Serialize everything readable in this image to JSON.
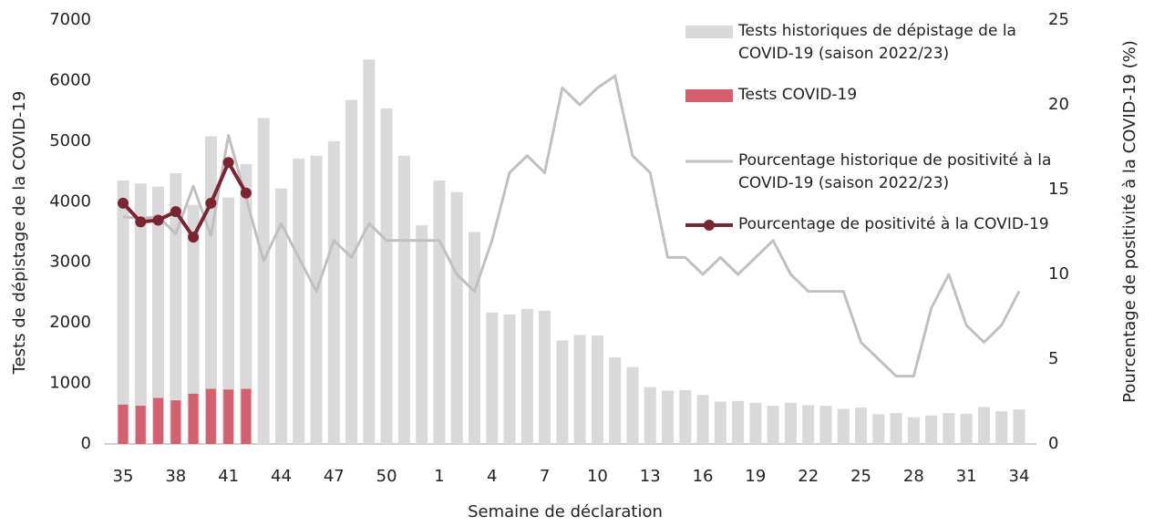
{
  "chart_data": {
    "type": "bar",
    "x_label": "Semaine de déclaration",
    "y_label": "Tests de dépistage de la COVID-19",
    "y2_label": "Pourcentage de positivité à la COVID-19 (%)",
    "categories": [
      "35",
      null,
      null,
      "38",
      null,
      null,
      "41",
      null,
      null,
      "44",
      null,
      null,
      "47",
      null,
      null,
      "50",
      null,
      null,
      "1",
      null,
      null,
      "4",
      null,
      null,
      "7",
      null,
      null,
      "10",
      null,
      null,
      "13",
      null,
      null,
      "16",
      null,
      null,
      "19",
      null,
      null,
      "22",
      null,
      null,
      "25",
      null,
      null,
      "28",
      null,
      null,
      "31",
      null,
      null,
      "34"
    ],
    "ylim": [
      0,
      7000
    ],
    "yticks": [
      0,
      1000,
      2000,
      3000,
      4000,
      5000,
      6000,
      7000
    ],
    "y2lim": [
      0,
      25
    ],
    "y2ticks": [
      0,
      5,
      10,
      15,
      20,
      25
    ],
    "grid": false,
    "legend": "top-right",
    "series": [
      {
        "name": "Tests historiques de dépistage de la COVID-19 (saison 2022/23)",
        "type": "bar",
        "color": "#d9d9d9",
        "values": [
          4350,
          4300,
          4250,
          4470,
          3950,
          5080,
          4070,
          4620,
          5380,
          4220,
          4710,
          4760,
          5000,
          5680,
          6350,
          5540,
          4760,
          3610,
          4350,
          4160,
          3500,
          2170,
          2140,
          2230,
          2200,
          1710,
          1800,
          1790,
          1430,
          1270,
          940,
          880,
          890,
          810,
          700,
          710,
          680,
          630,
          680,
          640,
          630,
          580,
          600,
          490,
          510,
          440,
          470,
          510,
          500,
          610,
          540,
          570
        ]
      },
      {
        "name": "Tests COVID-19",
        "type": "bar",
        "color": "#d4606f",
        "values": [
          650,
          630,
          760,
          720,
          830,
          910,
          900,
          910,
          null,
          null,
          null,
          null,
          null,
          null,
          null,
          null,
          null,
          null,
          null,
          null,
          null,
          null,
          null,
          null,
          null,
          null,
          null,
          null,
          null,
          null,
          null,
          null,
          null,
          null,
          null,
          null,
          null,
          null,
          null,
          null,
          null,
          null,
          null,
          null,
          null,
          null,
          null,
          null,
          null,
          null,
          null,
          null
        ]
      },
      {
        "name": "Pourcentage historique de positivité à la COVID-19 (saison 2022/23)",
        "type": "line",
        "axis": "y2",
        "color": "#c0c0c0",
        "values": [
          13.4,
          13.3,
          13.4,
          12.4,
          15.2,
          12.3,
          18.2,
          14.5,
          10.8,
          13,
          11,
          9,
          12,
          11,
          13,
          12,
          12,
          12,
          12,
          10,
          9,
          12,
          16,
          17,
          16,
          21,
          20,
          21,
          21.7,
          17,
          16,
          11,
          11,
          10,
          11,
          10,
          11,
          12,
          10,
          9,
          9,
          9,
          6,
          5,
          4,
          4,
          8,
          10,
          7,
          6,
          7,
          9
        ]
      },
      {
        "name": "Pourcentage de positivité à la COVID-19",
        "type": "line",
        "axis": "y2",
        "color": "#7b2432",
        "markers": true,
        "values": [
          14.2,
          13.1,
          13.2,
          13.7,
          12.2,
          14.2,
          16.6,
          14.8,
          null,
          null,
          null,
          null,
          null,
          null,
          null,
          null,
          null,
          null,
          null,
          null,
          null,
          null,
          null,
          null,
          null,
          null,
          null,
          null,
          null,
          null,
          null,
          null,
          null,
          null,
          null,
          null,
          null,
          null,
          null,
          null,
          null,
          null,
          null,
          null,
          null,
          null,
          null,
          null,
          null,
          null,
          null,
          null
        ]
      }
    ]
  }
}
